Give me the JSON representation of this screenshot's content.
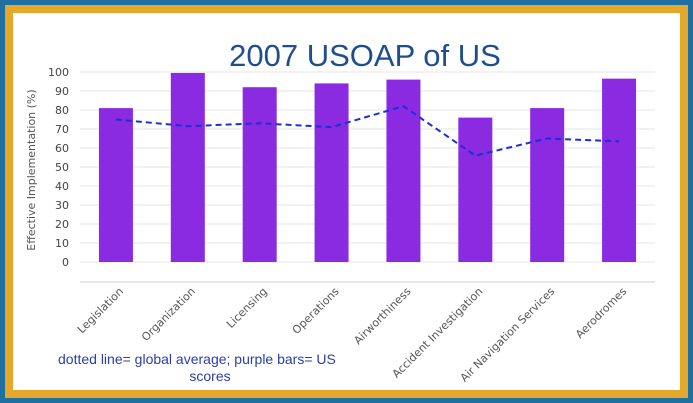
{
  "chart_data": {
    "type": "bar",
    "title": "2007 USOAP of US",
    "ylabel": "Effective Implementation (%)",
    "xlabel": "",
    "ylim": [
      0,
      100
    ],
    "yticks": [
      0,
      10,
      20,
      30,
      40,
      50,
      60,
      70,
      80,
      90,
      100
    ],
    "categories": [
      "Legislation",
      "Organization",
      "Licensing",
      "Operations",
      "Airworthiness",
      "Accident Investigation",
      "Air Navigation Services",
      "Aerodromes"
    ],
    "series": [
      {
        "type": "bar",
        "values": [
          81,
          99.5,
          92,
          94,
          96,
          76,
          81,
          96.5
        ],
        "color": "#8a2be2"
      },
      {
        "type": "line",
        "style": "dashed",
        "values": [
          75,
          71.5,
          73,
          71,
          82,
          56,
          65,
          63.5
        ],
        "color": "#1a2fd6"
      }
    ],
    "grid": true,
    "annotation": [
      "dotted line= global average; purple bars= US",
      "scores"
    ]
  }
}
